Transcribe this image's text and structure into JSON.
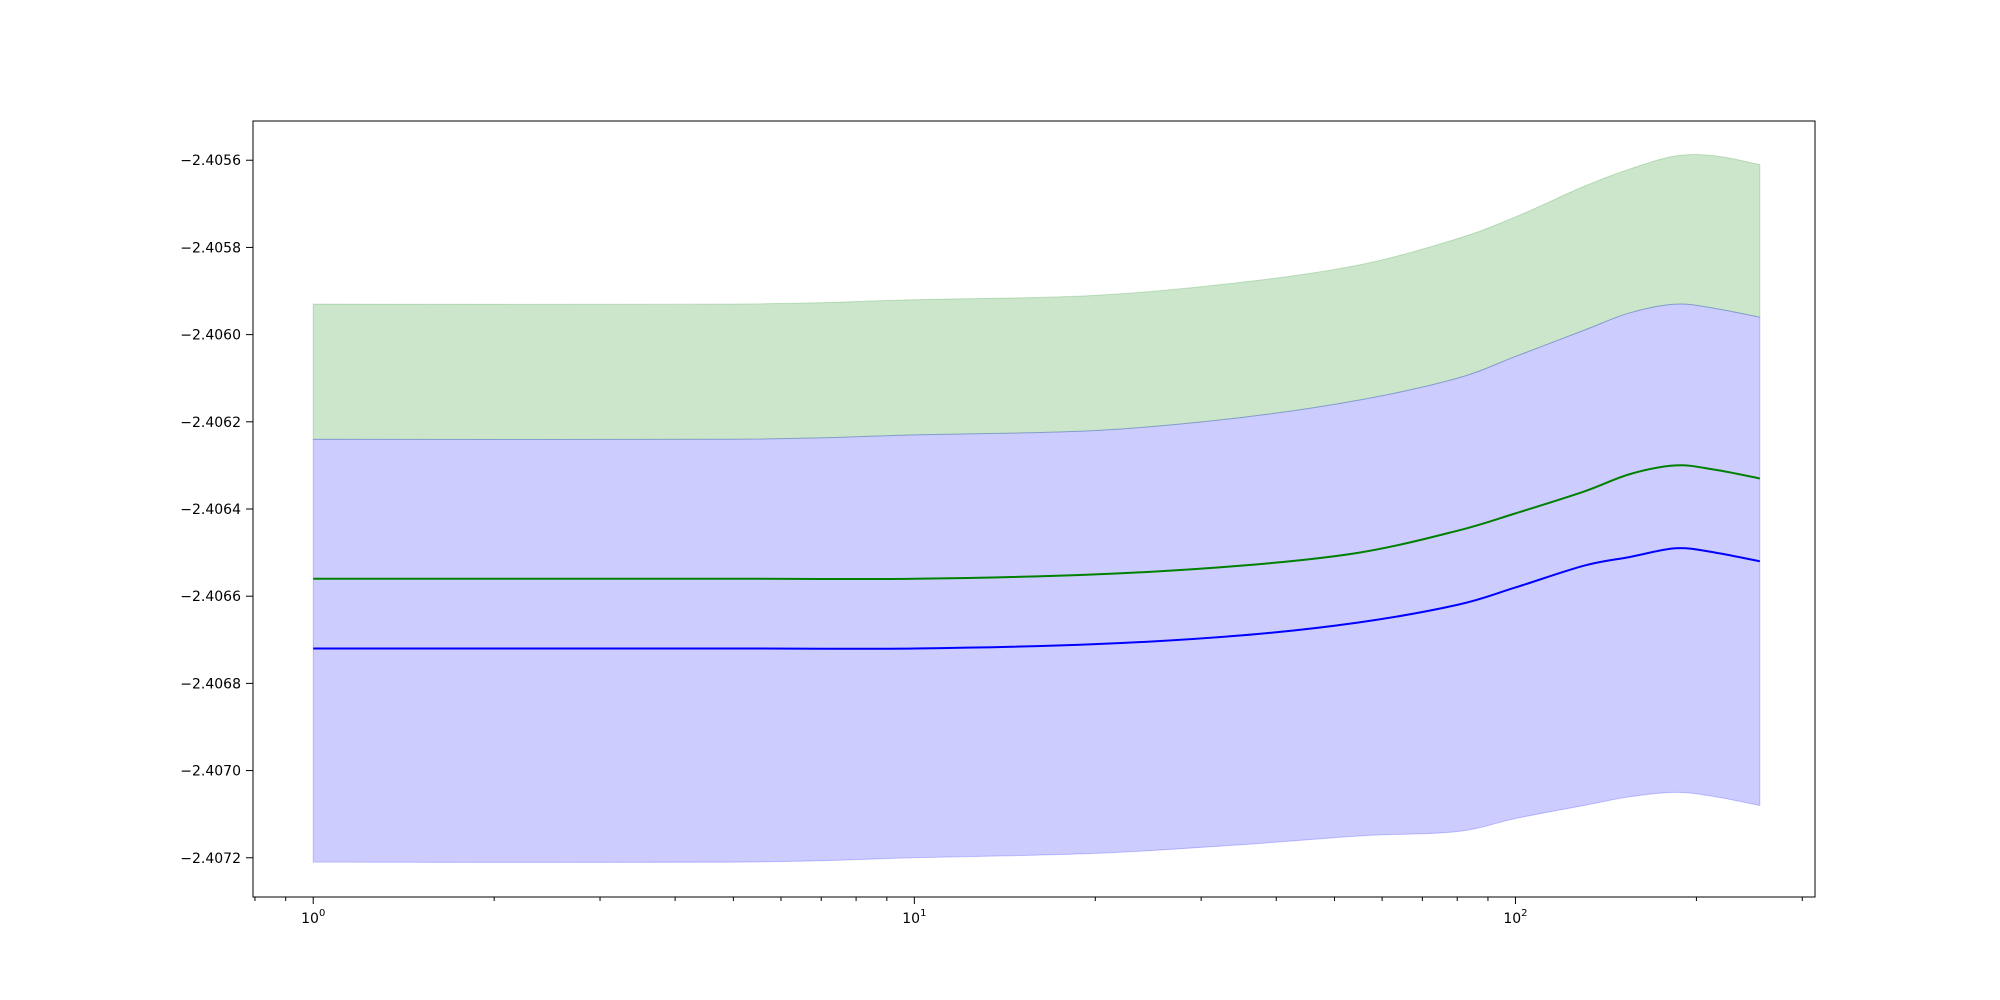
{
  "chart_data": {
    "type": "area",
    "xscale": "log",
    "xlim": [
      0.794,
      315
    ],
    "ylim": [
      -2.40729,
      -2.40551
    ],
    "grid": false,
    "x_ticks": [
      {
        "value": 1,
        "base": "10",
        "exp": "0"
      },
      {
        "value": 10,
        "base": "10",
        "exp": "1"
      },
      {
        "value": 100,
        "base": "10",
        "exp": "2"
      }
    ],
    "y_ticks": [
      -2.4056,
      -2.4058,
      -2.406,
      -2.4062,
      -2.4064,
      -2.4066,
      -2.4068,
      -2.407,
      -2.4072
    ],
    "y_tick_labels": [
      "−2.4056",
      "−2.4058",
      "−2.4060",
      "−2.4062",
      "−2.4064",
      "−2.4066",
      "−2.4068",
      "−2.4070",
      "−2.4072"
    ],
    "x": [
      1,
      5,
      10,
      20,
      35,
      55,
      80,
      100,
      130,
      155,
      185,
      215,
      255
    ],
    "series": [
      {
        "color": "#008000",
        "fill_color": "#008000",
        "fill_opacity": 0.2,
        "values": [
          -2.40656,
          -2.40656,
          -2.40656,
          -2.40655,
          -2.40653,
          -2.4065,
          -2.40645,
          -2.40641,
          -2.40636,
          -2.40632,
          -2.4063,
          -2.40631,
          -2.40633
        ],
        "upper": [
          -2.40593,
          -2.40593,
          -2.40592,
          -2.40591,
          -2.40588,
          -2.40584,
          -2.40578,
          -2.40573,
          -2.40566,
          -2.40562,
          -2.40559,
          -2.40559,
          -2.40561
        ],
        "lower": [
          -2.40624,
          -2.40624,
          -2.40623,
          -2.40622,
          -2.40619,
          -2.40615,
          -2.4061,
          -2.40605,
          -2.40599,
          -2.40595,
          -2.40593,
          -2.40594,
          -2.40596
        ]
      },
      {
        "color": "#0000ff",
        "fill_color": "#0000ff",
        "fill_opacity": 0.2,
        "values": [
          -2.40672,
          -2.40672,
          -2.40672,
          -2.40671,
          -2.40669,
          -2.40666,
          -2.40662,
          -2.40658,
          -2.40653,
          -2.40651,
          -2.40649,
          -2.4065,
          -2.40652
        ],
        "upper": [
          -2.40624,
          -2.40624,
          -2.40623,
          -2.40622,
          -2.40619,
          -2.40615,
          -2.4061,
          -2.40605,
          -2.40599,
          -2.40595,
          -2.40593,
          -2.40594,
          -2.40596
        ],
        "lower": [
          -2.40721,
          -2.40721,
          -2.4072,
          -2.40719,
          -2.40717,
          -2.40715,
          -2.40714,
          -2.40711,
          -2.40708,
          -2.40706,
          -2.40705,
          -2.40706,
          -2.40708
        ]
      }
    ]
  }
}
